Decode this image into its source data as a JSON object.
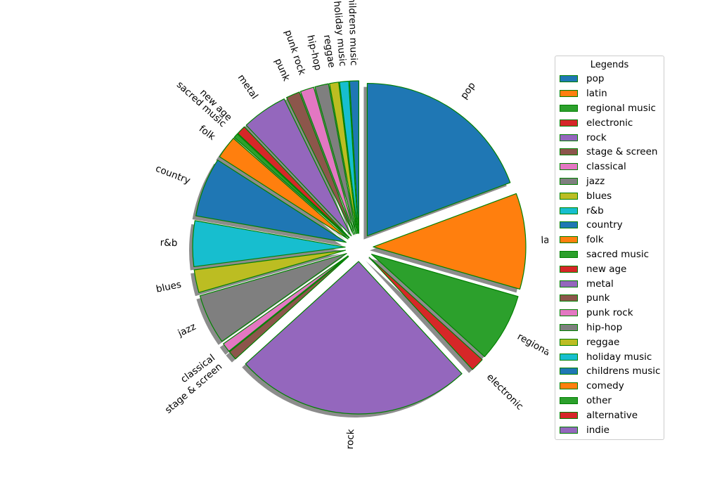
{
  "chart_data": {
    "type": "pie",
    "title": "",
    "start_angle_deg": 90,
    "direction": "clockwise",
    "slices": [
      {
        "label": "pop",
        "value": 20.0,
        "color": "#1f77b4"
      },
      {
        "label": "latin",
        "value": 10.5,
        "color": "#ff7f0e"
      },
      {
        "label": "regional music",
        "value": 7.5,
        "color": "#2ca02c"
      },
      {
        "label": "electronic",
        "value": 1.5,
        "color": "#d62728"
      },
      {
        "label": "rock",
        "value": 26.0,
        "color": "#9467bd"
      },
      {
        "label": "stage & screen",
        "value": 1.0,
        "color": "#8c564b"
      },
      {
        "label": "classical",
        "value": 1.0,
        "color": "#e377c2"
      },
      {
        "label": "jazz",
        "value": 5.5,
        "color": "#7f7f7f"
      },
      {
        "label": "blues",
        "value": 2.5,
        "color": "#bcbd22"
      },
      {
        "label": "r&b",
        "value": 5.0,
        "color": "#17becf"
      },
      {
        "label": "country",
        "value": 6.5,
        "color": "#1f77b4"
      },
      {
        "label": "folk",
        "value": 2.5,
        "color": "#ff7f0e"
      },
      {
        "label": "sacred music",
        "value": 0.5,
        "color": "#2ca02c"
      },
      {
        "label": "new age",
        "value": 1.0,
        "color": "#d62728"
      },
      {
        "label": "metal",
        "value": 5.0,
        "color": "#9467bd"
      },
      {
        "label": "punk",
        "value": 1.5,
        "color": "#8c564b"
      },
      {
        "label": "punk rock",
        "value": 1.5,
        "color": "#e377c2"
      },
      {
        "label": "hip-hop",
        "value": 1.5,
        "color": "#7f7f7f"
      },
      {
        "label": "reggae",
        "value": 1.0,
        "color": "#bcbd22"
      },
      {
        "label": "holiday music",
        "value": 1.0,
        "color": "#17becf"
      },
      {
        "label": "childrens music",
        "value": 1.0,
        "color": "#1f77b4"
      },
      {
        "label": "comedy",
        "value": 0.0,
        "color": "#ff7f0e"
      },
      {
        "label": "other",
        "value": 0.0,
        "color": "#2ca02c"
      },
      {
        "label": "alternative",
        "value": 0.0,
        "color": "#d62728"
      },
      {
        "label": "indie",
        "value": 0.0,
        "color": "#9467bd"
      }
    ],
    "edge_color": "#008000",
    "shadow": true,
    "exploded": true,
    "legend": {
      "title": "Legends",
      "placement": "right"
    }
  }
}
